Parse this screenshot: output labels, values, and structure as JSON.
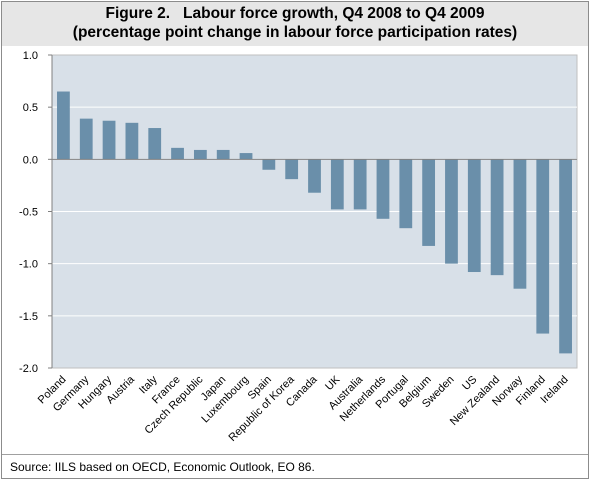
{
  "chart_data": {
    "type": "bar",
    "title": "Figure 2.   Labour force growth, Q4 2008 to Q4 2009",
    "subtitle": "(percentage point change in labour force participation rates)",
    "xlabel": "",
    "ylabel": "",
    "ylim": [
      -2.0,
      1.0
    ],
    "yticks": [
      "1.0",
      "0.5",
      "0.0",
      "-0.5",
      "-1.0",
      "-1.5",
      "-2.0"
    ],
    "grid": true,
    "categories": [
      "Poland",
      "Germany",
      "Hungary",
      "Austria",
      "Italy",
      "France",
      "Czech Republic",
      "Japan",
      "Luxembourg",
      "Spain",
      "Republic of Korea",
      "Canada",
      "UK",
      "Australia",
      "Netherlands",
      "Portugal",
      "Belgium",
      "Sweden",
      "US",
      "New Zealand",
      "Norway",
      "Finland",
      "Ireland"
    ],
    "values": [
      0.65,
      0.39,
      0.37,
      0.35,
      0.3,
      0.11,
      0.09,
      0.09,
      0.06,
      -0.1,
      -0.19,
      -0.32,
      -0.48,
      -0.48,
      -0.57,
      -0.66,
      -0.83,
      -1.0,
      -1.08,
      -1.11,
      -1.24,
      -1.67,
      -1.86
    ],
    "colors": {
      "bar": "#6a8faa",
      "plot_background": "#d8e0e8",
      "grid": "#ffffff"
    }
  },
  "source": "Source:  IILS based on OECD, Economic Outlook, EO 86."
}
